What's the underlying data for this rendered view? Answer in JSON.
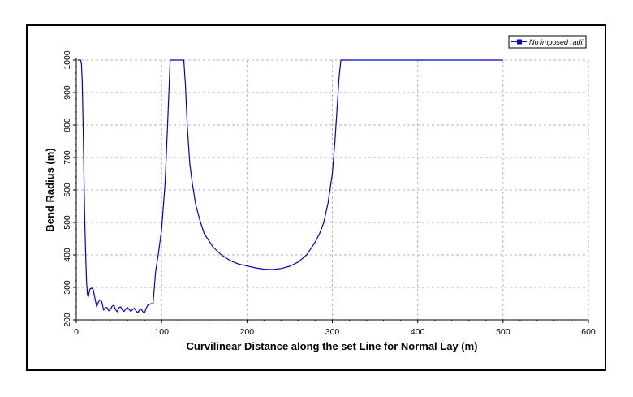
{
  "chart_data": {
    "type": "line",
    "title": "",
    "xlabel": "Curvilinear Distance along the set Line for Normal Lay (m)",
    "ylabel": "Bend Radius (m)",
    "xlim": [
      0,
      600
    ],
    "ylim": [
      200,
      1000
    ],
    "xticks": [
      "0",
      "100",
      "200",
      "300",
      "400",
      "500",
      "600"
    ],
    "yticks": [
      "200",
      "300",
      "400",
      "500",
      "600",
      "700",
      "800",
      "900",
      "1000"
    ],
    "grid": true,
    "legend_position": "top-right",
    "colors": {
      "series": "#0000cc",
      "grid": "#b4b4b4",
      "frame": "#000000"
    },
    "series": [
      {
        "name": "No imposed radii",
        "x": [
          2,
          4,
          5,
          6,
          7,
          8,
          9,
          10,
          11,
          12,
          13,
          14,
          16,
          18,
          20,
          22,
          24,
          26,
          28,
          30,
          32,
          34,
          36,
          38,
          40,
          42,
          44,
          46,
          48,
          50,
          52,
          54,
          56,
          58,
          60,
          62,
          64,
          66,
          68,
          70,
          72,
          74,
          76,
          78,
          80,
          82,
          84,
          86,
          88,
          90,
          93,
          96,
          100,
          104,
          107,
          110,
          114,
          118,
          122,
          126,
          128,
          130,
          133,
          136,
          140,
          145,
          150,
          160,
          170,
          180,
          190,
          200,
          210,
          220,
          230,
          240,
          250,
          260,
          270,
          280,
          285,
          290,
          295,
          300,
          303,
          306,
          308,
          310,
          320,
          340,
          360,
          380,
          400,
          420,
          440,
          460,
          480,
          500
        ],
        "y": [
          1000,
          1000,
          1000,
          990,
          930,
          800,
          640,
          500,
          400,
          320,
          280,
          270,
          295,
          298,
          292,
          265,
          240,
          255,
          262,
          255,
          230,
          238,
          238,
          228,
          232,
          242,
          245,
          232,
          225,
          238,
          240,
          230,
          226,
          234,
          238,
          232,
          226,
          232,
          236,
          228,
          222,
          230,
          234,
          225,
          222,
          236,
          246,
          248,
          250,
          250,
          350,
          400,
          480,
          620,
          800,
          1000,
          1000,
          1000,
          1000,
          1000,
          920,
          800,
          680,
          620,
          555,
          505,
          465,
          425,
          400,
          383,
          372,
          366,
          360,
          356,
          355,
          358,
          365,
          378,
          400,
          440,
          465,
          500,
          560,
          650,
          750,
          870,
          950,
          1000,
          1000,
          1000,
          1000,
          1000,
          1000,
          1000,
          1000,
          1000,
          1000,
          1000
        ]
      }
    ]
  }
}
